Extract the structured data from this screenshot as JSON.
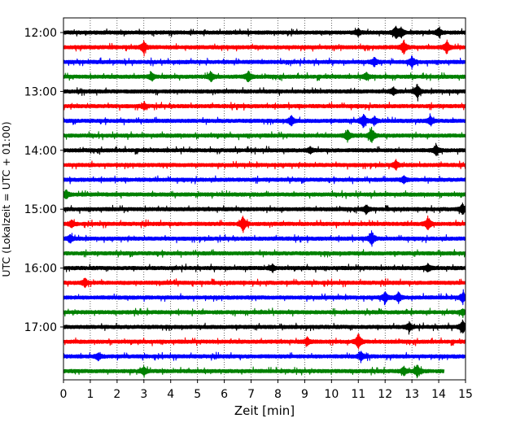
{
  "chart_data": {
    "type": "line",
    "title": "",
    "xlabel": "Zeit  [min]",
    "ylabel": "UTC (Lokalzeit = UTC + 01:00)",
    "xlim": [
      0,
      15
    ],
    "x_ticks": [
      "0",
      "1",
      "2",
      "3",
      "4",
      "5",
      "6",
      "7",
      "8",
      "9",
      "10",
      "11",
      "12",
      "13",
      "14",
      "15"
    ],
    "y_tick_labels": [
      "12:00",
      "13:00",
      "14:00",
      "15:00",
      "16:00",
      "17:00"
    ],
    "grid_x": true,
    "trace_interval_minutes": 15,
    "colors": [
      "#000000",
      "#ff0000",
      "#0000ff",
      "#008000"
    ],
    "traces": [
      {
        "start": "12:00",
        "color": "#000000",
        "end_min": 15,
        "spikes": [
          [
            11.0,
            0.45
          ],
          [
            12.4,
            0.9
          ],
          [
            12.6,
            0.7
          ],
          [
            14.0,
            0.55
          ]
        ]
      },
      {
        "start": "12:15",
        "color": "#ff0000",
        "end_min": 15,
        "spikes": [
          [
            3.0,
            0.9
          ],
          [
            12.7,
            1.0
          ],
          [
            14.3,
            0.9
          ]
        ]
      },
      {
        "start": "12:30",
        "color": "#0000ff",
        "end_min": 15,
        "spikes": [
          [
            11.6,
            0.6
          ],
          [
            13.0,
            0.8
          ]
        ]
      },
      {
        "start": "12:45",
        "color": "#008000",
        "end_min": 15,
        "spikes": [
          [
            3.3,
            0.5
          ],
          [
            5.5,
            0.7
          ],
          [
            6.9,
            0.8
          ],
          [
            11.3,
            0.5
          ]
        ]
      },
      {
        "start": "13:00",
        "color": "#000000",
        "end_min": 15,
        "spikes": [
          [
            12.3,
            0.5
          ],
          [
            13.2,
            1.1
          ]
        ]
      },
      {
        "start": "13:15",
        "color": "#ff0000",
        "end_min": 15,
        "spikes": [
          [
            3.0,
            0.4
          ]
        ]
      },
      {
        "start": "13:30",
        "color": "#0000ff",
        "end_min": 15,
        "spikes": [
          [
            8.5,
            0.7
          ],
          [
            11.2,
            1.0
          ],
          [
            11.6,
            0.6
          ],
          [
            13.7,
            0.7
          ]
        ]
      },
      {
        "start": "13:45",
        "color": "#008000",
        "end_min": 15,
        "spikes": [
          [
            10.6,
            0.8
          ],
          [
            11.5,
            1.1
          ]
        ]
      },
      {
        "start": "14:00",
        "color": "#000000",
        "end_min": 15,
        "spikes": [
          [
            9.2,
            0.4
          ],
          [
            13.9,
            0.8
          ]
        ]
      },
      {
        "start": "14:15",
        "color": "#ff0000",
        "end_min": 15,
        "spikes": [
          [
            12.4,
            0.6
          ]
        ]
      },
      {
        "start": "14:30",
        "color": "#0000ff",
        "end_min": 15,
        "spikes": [
          [
            12.7,
            0.5
          ]
        ]
      },
      {
        "start": "14:45",
        "color": "#008000",
        "end_min": 15,
        "spikes": [
          [
            0.1,
            0.6
          ]
        ]
      },
      {
        "start": "15:00",
        "color": "#000000",
        "end_min": 15,
        "spikes": [
          [
            11.3,
            0.6
          ],
          [
            14.9,
            0.8
          ]
        ]
      },
      {
        "start": "15:15",
        "color": "#ff0000",
        "end_min": 15,
        "spikes": [
          [
            0.3,
            0.5
          ],
          [
            6.7,
            1.2
          ],
          [
            13.6,
            1.0
          ]
        ]
      },
      {
        "start": "15:30",
        "color": "#0000ff",
        "end_min": 15,
        "spikes": [
          [
            0.25,
            0.6
          ],
          [
            11.5,
            1.1
          ]
        ]
      },
      {
        "start": "15:45",
        "color": "#008000",
        "end_min": 15,
        "spikes": []
      },
      {
        "start": "16:00",
        "color": "#000000",
        "end_min": 15,
        "spikes": [
          [
            7.8,
            0.5
          ],
          [
            13.6,
            0.5
          ]
        ]
      },
      {
        "start": "16:15",
        "color": "#ff0000",
        "end_min": 15,
        "spikes": [
          [
            0.8,
            0.6
          ]
        ]
      },
      {
        "start": "16:30",
        "color": "#0000ff",
        "end_min": 15,
        "spikes": [
          [
            12.0,
            0.8
          ],
          [
            12.5,
            0.7
          ],
          [
            14.9,
            0.8
          ]
        ]
      },
      {
        "start": "16:45",
        "color": "#008000",
        "end_min": 15,
        "spikes": [
          [
            14.9,
            0.4
          ]
        ]
      },
      {
        "start": "17:00",
        "color": "#000000",
        "end_min": 15,
        "spikes": [
          [
            12.9,
            0.6
          ],
          [
            14.9,
            1.0
          ]
        ]
      },
      {
        "start": "17:15",
        "color": "#ff0000",
        "end_min": 15,
        "spikes": [
          [
            9.1,
            0.5
          ],
          [
            11.0,
            1.2
          ]
        ]
      },
      {
        "start": "17:30",
        "color": "#0000ff",
        "end_min": 15,
        "spikes": [
          [
            1.3,
            0.5
          ],
          [
            11.1,
            0.6
          ]
        ]
      },
      {
        "start": "17:45",
        "color": "#008000",
        "end_min": 14.2,
        "spikes": [
          [
            3.0,
            0.7
          ],
          [
            12.7,
            0.6
          ],
          [
            13.2,
            0.9
          ]
        ]
      }
    ]
  }
}
